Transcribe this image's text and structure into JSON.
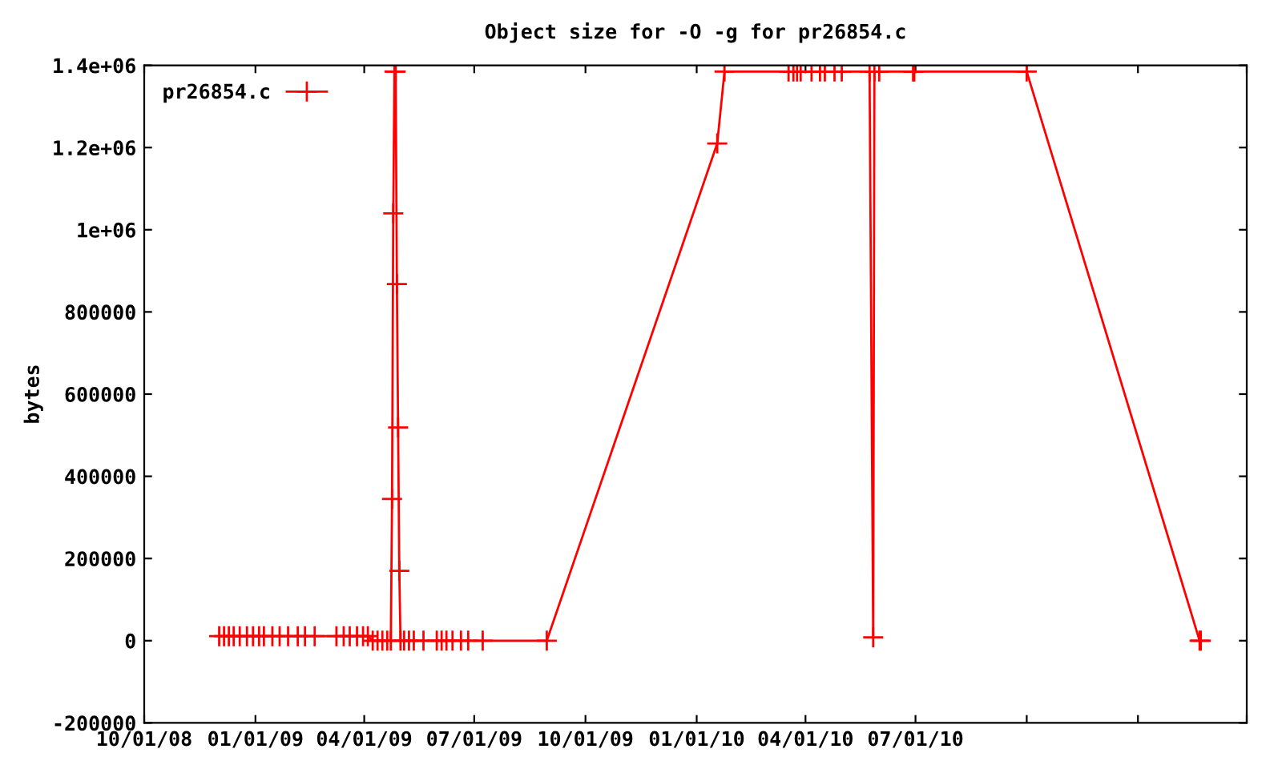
{
  "chart_data": {
    "type": "line",
    "title": "Object size for -O -g for pr26854.c",
    "ylabel": "bytes",
    "series": [
      {
        "name": "pr26854.c",
        "color": "#ff0000",
        "x": [
          "2008-12-02",
          "2008-12-06",
          "2008-12-10",
          "2008-12-14",
          "2008-12-19",
          "2008-12-25",
          "2008-12-30",
          "2009-01-04",
          "2009-01-08",
          "2009-01-15",
          "2009-01-21",
          "2009-01-28",
          "2009-02-05",
          "2009-02-11",
          "2009-02-19",
          "2009-03-09",
          "2009-03-15",
          "2009-03-20",
          "2009-03-26",
          "2009-03-31",
          "2009-04-04",
          "2009-04-08",
          "2009-04-12",
          "2009-04-16",
          "2009-04-20",
          "2009-04-23",
          "2009-04-24",
          "2009-04-25",
          "2009-04-26",
          "2009-04-27",
          "2009-04-28",
          "2009-04-29",
          "2009-04-30",
          "2009-05-01",
          "2009-05-04",
          "2009-05-08",
          "2009-05-12",
          "2009-05-20",
          "2009-05-31",
          "2009-06-04",
          "2009-06-08",
          "2009-06-13",
          "2009-06-20",
          "2009-06-26",
          "2009-07-08",
          "2009-08-30",
          "2010-01-18",
          "2010-01-24",
          "2010-03-18",
          "2010-03-22",
          "2010-03-25",
          "2010-03-28",
          "2010-04-06",
          "2010-04-13",
          "2010-04-17",
          "2010-04-25",
          "2010-05-01",
          "2010-05-24",
          "2010-05-27",
          "2010-05-28",
          "2010-06-01",
          "2010-06-29",
          "2010-06-30",
          "2010-10-01",
          "2011-02-21",
          "2011-02-22"
        ],
        "values": [
          11000,
          11000,
          11000,
          11000,
          11000,
          11000,
          11000,
          11000,
          11000,
          11000,
          11000,
          11000,
          11000,
          11000,
          11000,
          11000,
          11000,
          11000,
          11000,
          11000,
          11000,
          0,
          0,
          0,
          0,
          0,
          345000,
          1040000,
          1385000,
          1385000,
          868000,
          519000,
          170000,
          0,
          0,
          0,
          0,
          0,
          0,
          0,
          0,
          0,
          0,
          0,
          0,
          0,
          1210000,
          1385000,
          1385000,
          1385000,
          1385000,
          1385000,
          1385000,
          1385000,
          1385000,
          1385000,
          1385000,
          1385000,
          8000,
          1385000,
          1385000,
          1385000,
          1385000,
          1385000,
          0,
          0
        ]
      }
    ],
    "xlim": [
      "2008-10-01",
      "2011-04-01"
    ],
    "xticks": [
      {
        "value": "2008-10-01",
        "label": "10/01/08"
      },
      {
        "value": "2009-01-01",
        "label": "01/01/09"
      },
      {
        "value": "2009-04-01",
        "label": "04/01/09"
      },
      {
        "value": "2009-07-01",
        "label": "07/01/09"
      },
      {
        "value": "2009-10-01",
        "label": "10/01/09"
      },
      {
        "value": "2010-01-01",
        "label": "01/01/10"
      },
      {
        "value": "2010-04-01",
        "label": "04/01/10"
      },
      {
        "value": "2010-07-01",
        "label": "07/01/10"
      },
      {
        "value": "2010-10-01",
        "label": null
      },
      {
        "value": "2011-01-01",
        "label": null
      },
      {
        "value": "2011-04-01",
        "label": null
      }
    ],
    "ylim": [
      -200000,
      1400000
    ],
    "yticks": [
      -200000,
      0,
      200000,
      400000,
      600000,
      800000,
      {
        "value": 1000000,
        "label": "1e+06"
      },
      {
        "value": 1200000,
        "label": "1.2e+06"
      },
      {
        "value": 1400000,
        "label": "1.4e+06"
      }
    ],
    "grid": false,
    "legend": "top left",
    "marker": "cross",
    "line_style": "solid"
  }
}
